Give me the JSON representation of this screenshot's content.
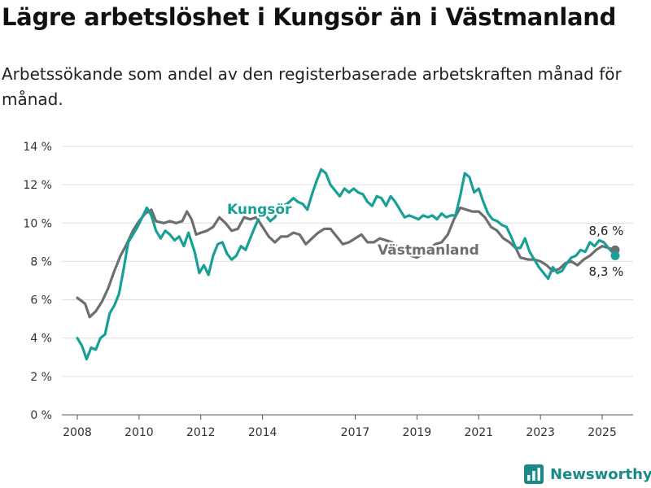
{
  "title": "Lägre arbetslöshet i Kungsör än i Västmanland",
  "subtitle": "Arbetssökande som andel av den registerbaserade arbetskraften månad för månad.",
  "brand": {
    "name": "Newsworthy",
    "icon": "bar-chart-logo-icon"
  },
  "colors": {
    "kungsor": "#18a096",
    "vastmanland": "#6e6e6e",
    "grid": "#dddddd",
    "brand": "#1a8a88"
  },
  "chart_data": {
    "type": "line",
    "grid": true,
    "ylim": [
      0,
      14
    ],
    "xlim": [
      2007.5,
      2026.0
    ],
    "y_ticks": [
      0,
      2,
      4,
      6,
      8,
      10,
      12,
      14
    ],
    "y_tick_labels": [
      "0 %",
      "2 %",
      "4 %",
      "6 %",
      "8 %",
      "10 %",
      "12 %",
      "14 %"
    ],
    "x_ticks": [
      2008,
      2010,
      2012,
      2014,
      2017,
      2019,
      2021,
      2023,
      2025
    ],
    "x_tick_labels": [
      "2008",
      "2010",
      "2012",
      "2014",
      "2017",
      "2019",
      "2021",
      "2023",
      "2025"
    ],
    "series": [
      {
        "name": "Västmanland",
        "end_label": "8,6 %",
        "points": [
          [
            2008.0,
            6.1
          ],
          [
            2008.25,
            5.8
          ],
          [
            2008.4,
            5.1
          ],
          [
            2008.6,
            5.4
          ],
          [
            2008.8,
            5.9
          ],
          [
            2009.0,
            6.6
          ],
          [
            2009.2,
            7.5
          ],
          [
            2009.4,
            8.3
          ],
          [
            2009.6,
            8.9
          ],
          [
            2009.8,
            9.6
          ],
          [
            2010.0,
            10.1
          ],
          [
            2010.2,
            10.5
          ],
          [
            2010.4,
            10.7
          ],
          [
            2010.55,
            10.1
          ],
          [
            2010.8,
            10.0
          ],
          [
            2011.0,
            10.1
          ],
          [
            2011.2,
            10.0
          ],
          [
            2011.4,
            10.1
          ],
          [
            2011.55,
            10.6
          ],
          [
            2011.7,
            10.2
          ],
          [
            2011.85,
            9.4
          ],
          [
            2012.0,
            9.5
          ],
          [
            2012.2,
            9.6
          ],
          [
            2012.4,
            9.8
          ],
          [
            2012.6,
            10.3
          ],
          [
            2012.8,
            10.0
          ],
          [
            2013.0,
            9.6
          ],
          [
            2013.2,
            9.7
          ],
          [
            2013.4,
            10.3
          ],
          [
            2013.6,
            10.2
          ],
          [
            2013.8,
            10.3
          ],
          [
            2014.0,
            9.8
          ],
          [
            2014.2,
            9.3
          ],
          [
            2014.4,
            9.0
          ],
          [
            2014.6,
            9.3
          ],
          [
            2014.8,
            9.3
          ],
          [
            2015.0,
            9.5
          ],
          [
            2015.2,
            9.4
          ],
          [
            2015.4,
            8.9
          ],
          [
            2015.6,
            9.2
          ],
          [
            2015.8,
            9.5
          ],
          [
            2016.0,
            9.7
          ],
          [
            2016.2,
            9.7
          ],
          [
            2016.4,
            9.3
          ],
          [
            2016.6,
            8.9
          ],
          [
            2016.8,
            9.0
          ],
          [
            2017.0,
            9.2
          ],
          [
            2017.2,
            9.4
          ],
          [
            2017.4,
            9.0
          ],
          [
            2017.6,
            9.0
          ],
          [
            2017.8,
            9.2
          ],
          [
            2018.0,
            9.1
          ],
          [
            2018.2,
            9.0
          ],
          [
            2018.4,
            8.7
          ],
          [
            2018.6,
            8.5
          ],
          [
            2018.8,
            8.3
          ],
          [
            2019.0,
            8.2
          ],
          [
            2019.2,
            8.4
          ],
          [
            2019.4,
            8.7
          ],
          [
            2019.6,
            8.9
          ],
          [
            2019.8,
            9.0
          ],
          [
            2020.0,
            9.4
          ],
          [
            2020.2,
            10.2
          ],
          [
            2020.4,
            10.8
          ],
          [
            2020.6,
            10.7
          ],
          [
            2020.8,
            10.6
          ],
          [
            2021.0,
            10.6
          ],
          [
            2021.2,
            10.3
          ],
          [
            2021.4,
            9.8
          ],
          [
            2021.6,
            9.6
          ],
          [
            2021.8,
            9.2
          ],
          [
            2022.0,
            9.0
          ],
          [
            2022.2,
            8.7
          ],
          [
            2022.35,
            8.2
          ],
          [
            2022.6,
            8.1
          ],
          [
            2022.8,
            8.1
          ],
          [
            2023.0,
            8.0
          ],
          [
            2023.2,
            7.8
          ],
          [
            2023.4,
            7.5
          ],
          [
            2023.6,
            7.6
          ],
          [
            2023.8,
            7.9
          ],
          [
            2024.0,
            8.0
          ],
          [
            2024.2,
            7.8
          ],
          [
            2024.4,
            8.1
          ],
          [
            2024.6,
            8.3
          ],
          [
            2024.8,
            8.6
          ],
          [
            2025.0,
            8.8
          ],
          [
            2025.2,
            8.7
          ],
          [
            2025.42,
            8.6
          ]
        ]
      },
      {
        "name": "Kungsör",
        "end_label": "8,3 %",
        "points": [
          [
            2008.0,
            4.0
          ],
          [
            2008.15,
            3.6
          ],
          [
            2008.3,
            2.9
          ],
          [
            2008.45,
            3.5
          ],
          [
            2008.6,
            3.4
          ],
          [
            2008.75,
            4.0
          ],
          [
            2008.9,
            4.2
          ],
          [
            2009.05,
            5.3
          ],
          [
            2009.2,
            5.7
          ],
          [
            2009.35,
            6.3
          ],
          [
            2009.5,
            7.6
          ],
          [
            2009.65,
            9.0
          ],
          [
            2009.8,
            9.4
          ],
          [
            2009.95,
            9.8
          ],
          [
            2010.1,
            10.3
          ],
          [
            2010.25,
            10.8
          ],
          [
            2010.4,
            10.4
          ],
          [
            2010.55,
            9.6
          ],
          [
            2010.7,
            9.2
          ],
          [
            2010.85,
            9.6
          ],
          [
            2011.0,
            9.4
          ],
          [
            2011.15,
            9.1
          ],
          [
            2011.3,
            9.3
          ],
          [
            2011.45,
            8.8
          ],
          [
            2011.6,
            9.5
          ],
          [
            2011.8,
            8.5
          ],
          [
            2011.95,
            7.4
          ],
          [
            2012.1,
            7.8
          ],
          [
            2012.25,
            7.3
          ],
          [
            2012.4,
            8.3
          ],
          [
            2012.55,
            8.9
          ],
          [
            2012.7,
            9.0
          ],
          [
            2012.85,
            8.4
          ],
          [
            2013.0,
            8.1
          ],
          [
            2013.15,
            8.3
          ],
          [
            2013.3,
            8.8
          ],
          [
            2013.45,
            8.6
          ],
          [
            2013.6,
            9.2
          ],
          [
            2013.75,
            9.8
          ],
          [
            2013.95,
            10.5
          ],
          [
            2014.1,
            10.4
          ],
          [
            2014.25,
            10.1
          ],
          [
            2014.4,
            10.3
          ],
          [
            2014.6,
            10.9
          ],
          [
            2014.8,
            11.0
          ],
          [
            2015.0,
            11.3
          ],
          [
            2015.15,
            11.1
          ],
          [
            2015.3,
            11.0
          ],
          [
            2015.45,
            10.7
          ],
          [
            2015.6,
            11.5
          ],
          [
            2015.75,
            12.2
          ],
          [
            2015.9,
            12.8
          ],
          [
            2016.05,
            12.6
          ],
          [
            2016.2,
            12.0
          ],
          [
            2016.35,
            11.7
          ],
          [
            2016.5,
            11.4
          ],
          [
            2016.65,
            11.8
          ],
          [
            2016.8,
            11.6
          ],
          [
            2016.95,
            11.8
          ],
          [
            2017.1,
            11.6
          ],
          [
            2017.25,
            11.5
          ],
          [
            2017.4,
            11.1
          ],
          [
            2017.55,
            10.9
          ],
          [
            2017.7,
            11.4
          ],
          [
            2017.85,
            11.3
          ],
          [
            2018.0,
            10.9
          ],
          [
            2018.15,
            11.4
          ],
          [
            2018.3,
            11.1
          ],
          [
            2018.45,
            10.7
          ],
          [
            2018.6,
            10.3
          ],
          [
            2018.75,
            10.4
          ],
          [
            2018.9,
            10.3
          ],
          [
            2019.05,
            10.2
          ],
          [
            2019.2,
            10.4
          ],
          [
            2019.35,
            10.3
          ],
          [
            2019.5,
            10.4
          ],
          [
            2019.65,
            10.2
          ],
          [
            2019.8,
            10.5
          ],
          [
            2019.95,
            10.3
          ],
          [
            2020.1,
            10.4
          ],
          [
            2020.25,
            10.4
          ],
          [
            2020.4,
            11.4
          ],
          [
            2020.55,
            12.6
          ],
          [
            2020.7,
            12.4
          ],
          [
            2020.85,
            11.6
          ],
          [
            2021.0,
            11.8
          ],
          [
            2021.15,
            11.1
          ],
          [
            2021.3,
            10.5
          ],
          [
            2021.45,
            10.2
          ],
          [
            2021.6,
            10.1
          ],
          [
            2021.75,
            9.9
          ],
          [
            2021.9,
            9.8
          ],
          [
            2022.05,
            9.3
          ],
          [
            2022.2,
            8.7
          ],
          [
            2022.35,
            8.7
          ],
          [
            2022.5,
            9.2
          ],
          [
            2022.65,
            8.5
          ],
          [
            2022.8,
            8.1
          ],
          [
            2022.95,
            7.7
          ],
          [
            2023.1,
            7.4
          ],
          [
            2023.25,
            7.1
          ],
          [
            2023.4,
            7.7
          ],
          [
            2023.55,
            7.4
          ],
          [
            2023.7,
            7.5
          ],
          [
            2023.85,
            7.9
          ],
          [
            2024.0,
            8.2
          ],
          [
            2024.15,
            8.3
          ],
          [
            2024.3,
            8.6
          ],
          [
            2024.45,
            8.5
          ],
          [
            2024.6,
            9.0
          ],
          [
            2024.75,
            8.8
          ],
          [
            2024.9,
            9.1
          ],
          [
            2025.05,
            9.0
          ],
          [
            2025.2,
            8.7
          ],
          [
            2025.32,
            8.5
          ],
          [
            2025.42,
            8.3
          ]
        ]
      }
    ],
    "annotations": [
      {
        "text": "Kungsör",
        "series": "Kungsör"
      },
      {
        "text": "Västmanland",
        "series": "Västmanland"
      }
    ]
  }
}
